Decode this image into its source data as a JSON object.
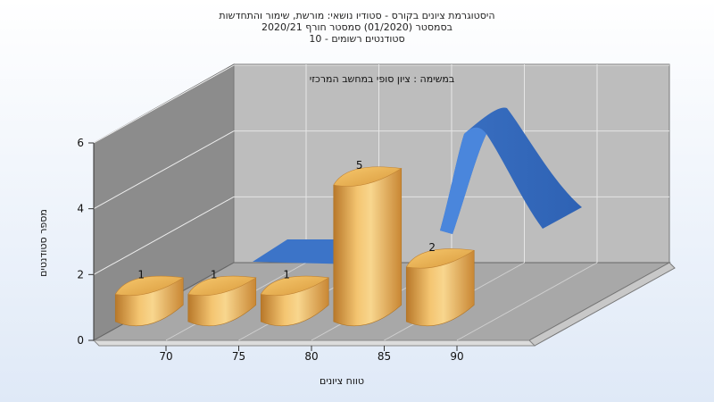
{
  "chart_data": {
    "type": "bar",
    "title_lines": [
      "היסטוגרמת ציונים בקורס - סטודיו נושאי: מורשת, שימור והתחדשות",
      "בסמסטר  (01/2020)  סמסטר חורף  2020/21",
      "סטודנטים רשומים - 10"
    ],
    "subtitle": "במשימה : ציון סופי במחשב המרכזי",
    "xlabel": "טווח ציונים",
    "ylabel": "מספר סטודנטים",
    "categories": [
      "70",
      "75",
      "80",
      "85",
      "90"
    ],
    "values": [
      1,
      1,
      1,
      5,
      2
    ],
    "data_labels": [
      "1",
      "1",
      "1",
      "5",
      "2"
    ],
    "ylim": [
      0,
      6
    ],
    "yticks": [
      "0",
      "2",
      "4",
      "6"
    ],
    "grid": true,
    "colors": {
      "bar": "#e8a94c",
      "curve": "#3c74c8",
      "wall": "#bdbdbd",
      "side_wall": "#8c8c8c",
      "floor": "#a8a8a8"
    }
  }
}
